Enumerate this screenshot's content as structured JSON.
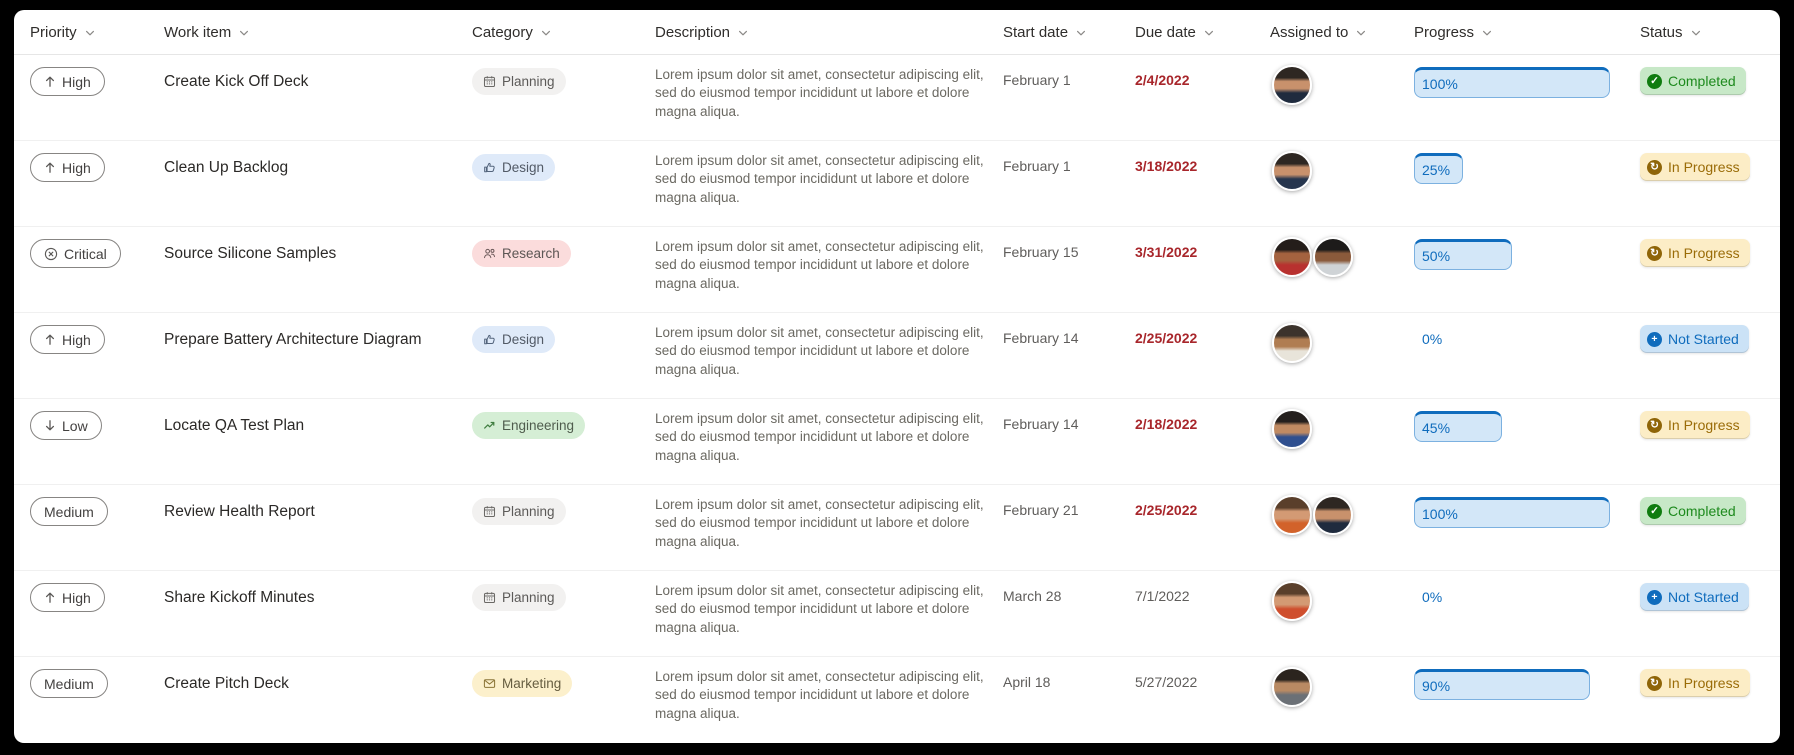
{
  "table": {
    "columns": [
      "Priority",
      "Work item",
      "Category",
      "Description",
      "Start date",
      "Due date",
      "Assigned to",
      "Progress",
      "Status"
    ],
    "rows": [
      {
        "priority": "High",
        "work_item": "Create Kick Off Deck",
        "category": "Planning",
        "description": "Lorem ipsum dolor sit amet, consectetur adipiscing elit, sed do eiusmod tempor incididunt ut labore et dolore magna aliqua.",
        "start_date": "February 1",
        "due_date": "2/4/2022",
        "due_overdue": true,
        "assigned": [
          {
            "hair": "#2e2722",
            "skin": "#c8916c",
            "cloth": "#1f2b3e"
          }
        ],
        "progress": 100,
        "status": "Completed"
      },
      {
        "priority": "High",
        "work_item": "Clean Up Backlog",
        "category": "Design",
        "description": "Lorem ipsum dolor sit amet, consectetur adipiscing elit, sed do eiusmod tempor incididunt ut labore et dolore magna aliqua.",
        "start_date": "February 1",
        "due_date": "3/18/2022",
        "due_overdue": true,
        "assigned": [
          {
            "hair": "#2e2722",
            "skin": "#c8916c",
            "cloth": "#27364e"
          }
        ],
        "progress": 25,
        "status": "In Progress"
      },
      {
        "priority": "Critical",
        "work_item": "Source Silicone Samples",
        "category": "Research",
        "description": "Lorem ipsum dolor sit amet, consectetur adipiscing elit, sed do eiusmod tempor incididunt ut labore et dolore magna aliqua.",
        "start_date": "February 15",
        "due_date": "3/31/2022",
        "due_overdue": true,
        "assigned": [
          {
            "hair": "#241d1a",
            "skin": "#a4623f",
            "cloth": "#b8312f"
          },
          {
            "hair": "#1d1b1a",
            "skin": "#8a5a3b",
            "cloth": "#cfd3d6"
          }
        ],
        "progress": 50,
        "status": "In Progress"
      },
      {
        "priority": "High",
        "work_item": "Prepare Battery Architecture Diagram",
        "category": "Design",
        "description": "Lorem ipsum dolor sit amet, consectetur adipiscing elit, sed do eiusmod tempor incididunt ut labore et dolore magna aliqua.",
        "start_date": "February 14",
        "due_date": "2/25/2022",
        "due_overdue": true,
        "assigned": [
          {
            "hair": "#3c332c",
            "skin": "#b07d52",
            "cloth": "#e8e4da"
          }
        ],
        "progress": 0,
        "status": "Not Started"
      },
      {
        "priority": "Low",
        "work_item": "Locate QA Test Plan",
        "category": "Engineering",
        "description": "Lorem ipsum dolor sit amet, consectetur adipiscing elit, sed do eiusmod tempor incididunt ut labore et dolore magna aliqua.",
        "start_date": "February 14",
        "due_date": "2/18/2022",
        "due_overdue": true,
        "assigned": [
          {
            "hair": "#241f1d",
            "skin": "#c08a62",
            "cloth": "#2f4f8f"
          }
        ],
        "progress": 45,
        "status": "In Progress"
      },
      {
        "priority": "Medium",
        "work_item": "Review Health Report",
        "category": "Planning",
        "description": "Lorem ipsum dolor sit amet, consectetur adipiscing elit, sed do eiusmod tempor incididunt ut labore et dolore magna aliqua.",
        "start_date": "February 21",
        "due_date": "2/25/2022",
        "due_overdue": true,
        "assigned": [
          {
            "hair": "#5a3f2b",
            "skin": "#d39a74",
            "cloth": "#d2622a"
          },
          {
            "hair": "#2e2722",
            "skin": "#c8916c",
            "cloth": "#1f2b3e"
          }
        ],
        "progress": 100,
        "status": "Completed"
      },
      {
        "priority": "High",
        "work_item": "Share Kickoff Minutes",
        "category": "Planning",
        "description": "Lorem ipsum dolor sit amet, consectetur adipiscing elit, sed do eiusmod tempor incididunt ut labore et dolore magna aliqua.",
        "start_date": "March 28",
        "due_date": "7/1/2022",
        "due_overdue": false,
        "assigned": [
          {
            "hair": "#5a3f2b",
            "skin": "#d39a74",
            "cloth": "#cf4f2e"
          }
        ],
        "progress": 0,
        "status": "Not Started"
      },
      {
        "priority": "Medium",
        "work_item": "Create Pitch Deck",
        "category": "Marketing",
        "description": "Lorem ipsum dolor sit amet, consectetur adipiscing elit, sed do eiusmod tempor incididunt ut labore et dolore magna aliqua.",
        "start_date": "April 18",
        "due_date": "5/27/2022",
        "due_overdue": false,
        "assigned": [
          {
            "hair": "#2b241e",
            "skin": "#b98a63",
            "cloth": "#6b7076"
          }
        ],
        "progress": 90,
        "status": "In Progress"
      }
    ]
  },
  "priority_styles": {
    "High": {
      "icon": "arrow-up"
    },
    "Low": {
      "icon": "arrow-down"
    },
    "Critical": {
      "icon": "dismiss-circle"
    },
    "Medium": {
      "icon": null
    }
  },
  "category_styles": {
    "Planning": {
      "bg": "#f2f1f0",
      "fg": "#5c5a58",
      "icon_fg": "#6b6966",
      "icon": "calendar"
    },
    "Design": {
      "bg": "#dfeaf9",
      "fg": "#525a66",
      "icon_fg": "#53647c",
      "icon": "thumbs-up"
    },
    "Research": {
      "bg": "#fbdcdc",
      "fg": "#5c5654",
      "icon_fg": "#6d5a5a",
      "icon": "people"
    },
    "Engineering": {
      "bg": "#d5eed5",
      "fg": "#4f5c4d",
      "icon_fg": "#3f7d3f",
      "icon": "trend-up"
    },
    "Marketing": {
      "bg": "#fcf0cc",
      "fg": "#665d40",
      "icon_fg": "#8a7436",
      "icon": "envelope"
    }
  },
  "status_styles": {
    "Completed": {
      "bg": "#c7e8c7",
      "fg": "#1d8a1d",
      "icon_bg": "#107c10",
      "glyph": "✓",
      "icon": "checkmark-circle"
    },
    "In Progress": {
      "bg": "#fcedc6",
      "fg": "#9a6c08",
      "icon_bg": "#8f6508",
      "glyph": "↻",
      "icon": "sync-circle"
    },
    "Not Started": {
      "bg": "#cbe2f6",
      "fg": "#0f6cbd",
      "icon_bg": "#0f6cbd",
      "glyph": "+",
      "icon": "plus-circle"
    }
  },
  "progress_style": {
    "accent": "#0f6cbd",
    "fill": "#d3e7f8"
  },
  "due_date_overdue_color": "#a8262b",
  "background_color": "#000000"
}
